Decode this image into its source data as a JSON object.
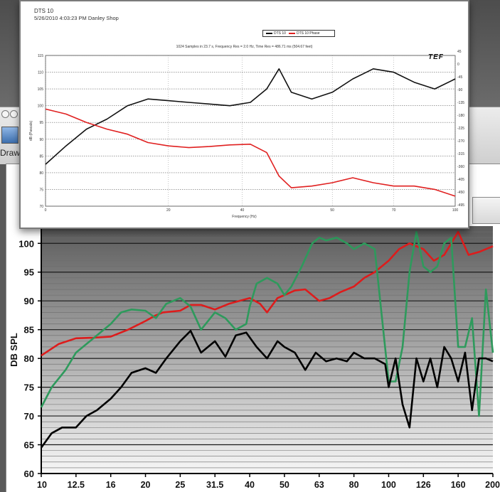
{
  "app": {
    "drawer_label": "Drawe"
  },
  "popup": {
    "title": "DTS 10",
    "meta": "5/26/2010 4:03:23 PM   Danley Shop",
    "legend": [
      {
        "name": "DTS 10",
        "color": "#111111"
      },
      {
        "name": "DTS 10 Phase",
        "color": "#e02020"
      }
    ],
    "subtitle": "1024 Samples in 23.7 s, Frequency Res = 2.0 Hz, Time Res = 486.71 ms (504.67 feet)",
    "logo": "TEF",
    "ylabel": "dB (Pascals)",
    "xlabel": "Frequency (Hz)"
  },
  "chart_data": [
    {
      "type": "line",
      "title": "",
      "xlabel": "Frequency (Hz)",
      "ylabel": "dB (Pascals)",
      "x_ticks": [
        "0",
        "20",
        "40",
        "50",
        "70",
        "100"
      ],
      "y_ticks": [
        115,
        110,
        105,
        100,
        95,
        90,
        85,
        80,
        75,
        70
      ],
      "y2_ticks": [
        45,
        0,
        -45,
        -90,
        -135,
        -180,
        -225,
        -270,
        -315,
        -360,
        -405,
        -450,
        -495
      ],
      "ylim": [
        70,
        115
      ],
      "grid": true,
      "legend": "top-center",
      "series": [
        {
          "name": "DTS 10",
          "color": "#111111",
          "x": [
            0,
            5,
            10,
            15,
            20,
            25,
            30,
            35,
            40,
            45,
            50,
            54,
            57,
            60,
            65,
            70,
            75,
            80,
            85,
            90,
            95,
            100
          ],
          "y": [
            82.5,
            88,
            93,
            96,
            100,
            102,
            101.5,
            101,
            100.5,
            100,
            101,
            105,
            111,
            104,
            102,
            104,
            108,
            111,
            110,
            107,
            105,
            108
          ]
        },
        {
          "name": "DTS 10 Phase",
          "color": "#e02020",
          "x": [
            0,
            5,
            10,
            15,
            20,
            25,
            30,
            35,
            40,
            45,
            50,
            54,
            57,
            60,
            65,
            70,
            75,
            80,
            85,
            90,
            95,
            100
          ],
          "y": [
            99,
            97.5,
            95,
            93,
            91.5,
            89,
            88,
            87.5,
            87.8,
            88.3,
            88.5,
            86,
            79,
            75.5,
            76,
            77,
            78.5,
            77,
            76,
            76,
            75,
            73
          ]
        }
      ]
    },
    {
      "type": "line",
      "title": "",
      "xlabel": "",
      "ylabel": "DB SPL",
      "categories": [
        "10",
        "12.5",
        "16",
        "20",
        "25",
        "31.5",
        "40",
        "50",
        "63",
        "80",
        "100",
        "126",
        "160",
        "200"
      ],
      "y_ticks": [
        60,
        65,
        70,
        75,
        80,
        85,
        90,
        95,
        100
      ],
      "ylim": [
        60,
        103
      ],
      "grid": true,
      "series": [
        {
          "color": "#dd1c1c",
          "x": [
            0,
            0.5,
            1,
            1.5,
            2,
            2.5,
            3,
            3.3,
            3.5,
            4,
            4.3,
            4.6,
            5,
            5.4,
            5.7,
            6,
            6.3,
            6.5,
            6.8,
            7,
            7.3,
            7.6,
            8,
            8.3,
            8.6,
            9,
            9.3,
            9.6,
            10,
            10.3,
            10.6,
            11,
            11.3,
            11.6,
            12,
            12.3,
            12.6,
            13
          ],
          "y": [
            80.5,
            82.5,
            83.5,
            83.6,
            83.8,
            85,
            86.5,
            87.5,
            88,
            88.3,
            89.3,
            89.3,
            88.5,
            89.5,
            90,
            90.5,
            89.5,
            88,
            90.5,
            91,
            91.8,
            92,
            90,
            90.5,
            91.5,
            92.5,
            94,
            95,
            97,
            99,
            100,
            99,
            97,
            98,
            102,
            98,
            98.5,
            99.5
          ]
        },
        {
          "color": "#2e9a5c",
          "x": [
            0,
            0.3,
            0.7,
            1,
            1.3,
            1.6,
            2,
            2.3,
            2.6,
            3,
            3.3,
            3.6,
            4,
            4.3,
            4.6,
            5,
            5.3,
            5.6,
            5.9,
            6,
            6.2,
            6.5,
            6.8,
            7,
            7.2,
            7.5,
            7.8,
            8,
            8.2,
            8.5,
            8.8,
            9,
            9.3,
            9.6,
            10,
            10.2,
            10.4,
            10.6,
            10.8,
            11,
            11.2,
            11.4,
            11.6,
            11.8,
            12,
            12.2,
            12.4,
            12.6,
            12.8,
            13
          ],
          "y": [
            71.5,
            75,
            78,
            81,
            82.5,
            84,
            86,
            88,
            88.5,
            88.3,
            87,
            89.5,
            90.5,
            89,
            85,
            88,
            87,
            85,
            86,
            89,
            93,
            94,
            93,
            91,
            92.5,
            96,
            100,
            101,
            100.5,
            101,
            100,
            99,
            100,
            99,
            76,
            76,
            82,
            95,
            102,
            96,
            95,
            96,
            100,
            101,
            82,
            82,
            87,
            70,
            92,
            81
          ]
        },
        {
          "color": "#000000",
          "x": [
            0,
            0.3,
            0.6,
            1,
            1.3,
            1.6,
            2,
            2.3,
            2.6,
            3,
            3.3,
            3.6,
            4,
            4.3,
            4.6,
            5,
            5.3,
            5.6,
            5.9,
            6.2,
            6.5,
            6.8,
            7,
            7.3,
            7.6,
            7.9,
            8.2,
            8.5,
            8.8,
            9,
            9.3,
            9.6,
            9.9,
            10,
            10.2,
            10.4,
            10.6,
            10.8,
            11,
            11.2,
            11.4,
            11.6,
            11.8,
            12,
            12.2,
            12.4,
            12.6,
            12.8,
            13
          ],
          "y": [
            64.5,
            67,
            68,
            68,
            70,
            71,
            73,
            75,
            77.5,
            78.3,
            77.5,
            80,
            83,
            84.8,
            81,
            83,
            80.3,
            84,
            84.5,
            82,
            80,
            83,
            82,
            81,
            78,
            81,
            79.5,
            80,
            79.5,
            81,
            80,
            80,
            79,
            75,
            80,
            72,
            68,
            80,
            76,
            80,
            75,
            82,
            80,
            76,
            81,
            71,
            80,
            80,
            79.5
          ]
        }
      ]
    }
  ]
}
